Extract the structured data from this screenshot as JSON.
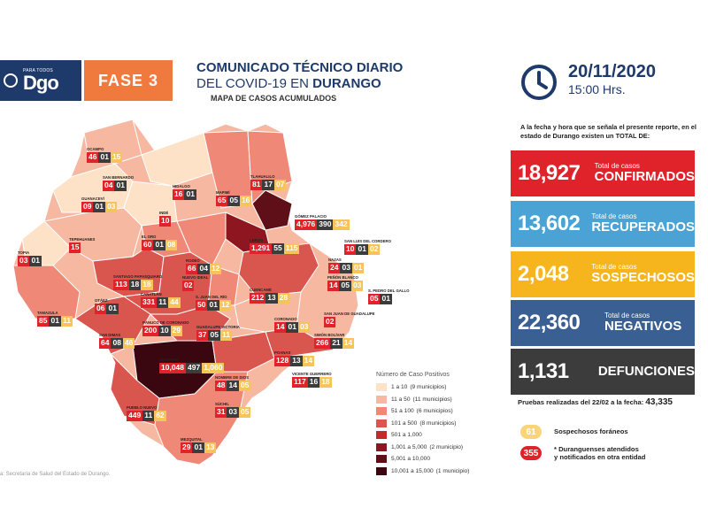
{
  "header": {
    "logo_small": "PARA TODOS",
    "logo_big": "Dgo",
    "phase": "FASE 3",
    "title_line1": "COMUNICADO TÉCNICO DIARIO",
    "title_line2_a": "DEL COVID-19 EN ",
    "title_line2_b": "DURANGO",
    "subtitle": "MAPA DE CASOS ACUMULADOS",
    "date": "20/11/2020",
    "time": "15:00 Hrs."
  },
  "summary": {
    "intro": "A la fecha y hora que se señala el presente reporte, en el estado de Durango existen un TOTAL DE:",
    "stats": [
      {
        "value": "18,927",
        "small": "Total de casos",
        "big": "CONFIRMADOS",
        "color": "#e0232a"
      },
      {
        "value": "13,602",
        "small": "Total de casos",
        "big": "RECUPERADOS",
        "color": "#4aa3d4"
      },
      {
        "value": "2,048",
        "small": "Total de casos",
        "big": "SOSPECHOSOS",
        "color": "#f6b51c"
      },
      {
        "value": "22,360",
        "small": "Total de casos",
        "big": "NEGATIVOS",
        "color": "#3a5f93"
      },
      {
        "value": "1,131",
        "small": "",
        "big": "DEFUNCIONES",
        "color": "#3c3c3c"
      }
    ],
    "pruebas_label": "Pruebas realizadas del 22/02 a la fecha:",
    "pruebas_value": "43,335",
    "foraneos_badge": "61",
    "foraneos_label": "Sospechosos foráneos",
    "otra_badge": "355",
    "otra_label_1": "* Duranguenses atendidos",
    "otra_label_2": "y notificados en otra entidad"
  },
  "map_legend": {
    "title": "Número de Caso Positivos",
    "items": [
      {
        "label": "1 a 10",
        "note": "(9 municipios)",
        "color": "#fde2c8"
      },
      {
        "label": "11 a 50",
        "note": "(11 municipios)",
        "color": "#f7b8a2"
      },
      {
        "label": "51 a 100",
        "note": "(6 municipios)",
        "color": "#ef8877"
      },
      {
        "label": "101 a 500",
        "note": "(8 municipios)",
        "color": "#d9564f"
      },
      {
        "label": "501 a 1,000",
        "note": "",
        "color": "#c42a2a"
      },
      {
        "label": "1,001 a 5,000",
        "note": "(2 municipio)",
        "color": "#8e1620"
      },
      {
        "label": "5,001 a 10,000",
        "note": "",
        "color": "#5e0f18"
      },
      {
        "label": "10,001 a 15,000",
        "note": "(1 municipio)",
        "color": "#3a0710"
      }
    ]
  },
  "source": "a: Secretaría de Salud del Estado de Durango.",
  "municipios": [
    {
      "name": "OCAMPO",
      "c": "46",
      "r": "01",
      "s": "15"
    },
    {
      "name": "SAN BERNARDO",
      "c": "04",
      "r": "01",
      "s": ""
    },
    {
      "name": "GUANACEVÍ",
      "c": "09",
      "r": "01",
      "s": "03"
    },
    {
      "name": "HIDALGO",
      "c": "16",
      "r": "01",
      "s": ""
    },
    {
      "name": "MAPIMÍ",
      "c": "65",
      "r": "05",
      "s": "16"
    },
    {
      "name": "TLAHUALILO",
      "c": "81",
      "r": "17",
      "s": "07"
    },
    {
      "name": "INDÉ",
      "c": "10",
      "r": "",
      "s": ""
    },
    {
      "name": "GÓMEZ PALACIO",
      "c": "4,976",
      "r": "390",
      "s": "342"
    },
    {
      "name": "LERDO",
      "c": "1,291",
      "r": "55",
      "s": "115"
    },
    {
      "name": "TEPEHUANES",
      "c": "15",
      "r": "",
      "s": ""
    },
    {
      "name": "EL ORO",
      "c": "60",
      "r": "01",
      "s": "08"
    },
    {
      "name": "SAN LUIS DEL CORDERO",
      "c": "10",
      "r": "01",
      "s": "02"
    },
    {
      "name": "TOPIA",
      "c": "03",
      "r": "01",
      "s": ""
    },
    {
      "name": "RODEO",
      "c": "66",
      "r": "04",
      "s": "12"
    },
    {
      "name": "NAZAS",
      "c": "24",
      "r": "03",
      "s": "01"
    },
    {
      "name": "SANTIAGO PAPASQUIARO",
      "c": "113",
      "r": "18",
      "s": "18"
    },
    {
      "name": "NUEVO IDEAL",
      "c": "02",
      "r": "",
      "s": ""
    },
    {
      "name": "PEÑÓN BLANCO",
      "c": "14",
      "r": "05",
      "s": "03"
    },
    {
      "name": "CUENCAMÉ",
      "c": "212",
      "r": "13",
      "s": "28"
    },
    {
      "name": "S. JUAN DEL RÍO",
      "c": "50",
      "r": "01",
      "s": "12"
    },
    {
      "name": "CANATLÁN",
      "c": "331",
      "r": "11",
      "s": "44"
    },
    {
      "name": "S. PEDRO DEL GALLO",
      "c": "05",
      "r": "01",
      "s": ""
    },
    {
      "name": "OTÁEZ",
      "c": "06",
      "r": "01",
      "s": ""
    },
    {
      "name": "TAMAZULA",
      "c": "85",
      "r": "01",
      "s": "11"
    },
    {
      "name": "SAN JUAN DE GUADALUPE",
      "c": "02",
      "r": "",
      "s": ""
    },
    {
      "name": "CORONADO",
      "c": "14",
      "r": "01",
      "s": "03"
    },
    {
      "name": "SAN DIMAS",
      "c": "64",
      "r": "08",
      "s": "46"
    },
    {
      "name": "PÁNUCO DE CORONADO",
      "c": "200",
      "r": "10",
      "s": "29"
    },
    {
      "name": "GUADALUPE VICTORIA",
      "c": "37",
      "r": "05",
      "s": "11"
    },
    {
      "name": "SIMÓN BOLÍVAR",
      "c": "266",
      "r": "21",
      "s": "14"
    },
    {
      "name": "DURANGO",
      "c": "10,048",
      "r": "497",
      "s": "1,060"
    },
    {
      "name": "POANAS",
      "c": "128",
      "r": "13",
      "s": "14"
    },
    {
      "name": "NOMBRE DE DIOS",
      "c": "48",
      "r": "14",
      "s": "05"
    },
    {
      "name": "VICENTE GUERRERO",
      "c": "117",
      "r": "16",
      "s": "18"
    },
    {
      "name": "PUEBLO NUEVO",
      "c": "449",
      "r": "11",
      "s": "62"
    },
    {
      "name": "SÚCHIL",
      "c": "31",
      "r": "03",
      "s": "05"
    },
    {
      "name": "MEZQUITAL",
      "c": "29",
      "r": "01",
      "s": "13"
    }
  ]
}
